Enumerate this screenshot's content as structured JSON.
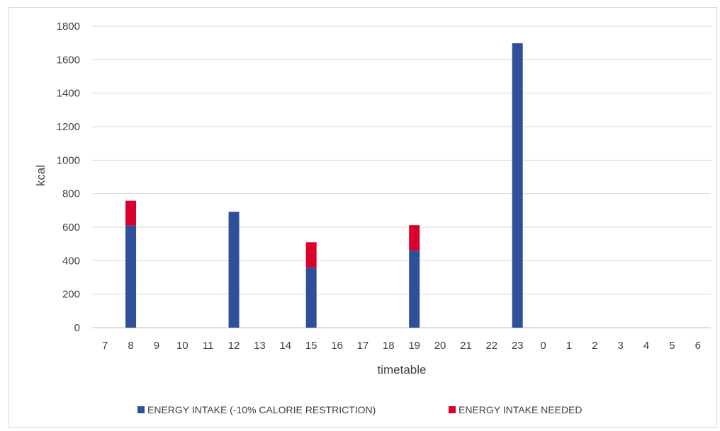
{
  "chart_data": {
    "type": "bar",
    "stacked": true,
    "categories": [
      "7",
      "8",
      "9",
      "10",
      "11",
      "12",
      "13",
      "14",
      "15",
      "16",
      "17",
      "18",
      "19",
      "20",
      "21",
      "22",
      "23",
      "0",
      "1",
      "2",
      "3",
      "4",
      "5",
      "6"
    ],
    "series": [
      {
        "name": "ENERGY INTAKE (-10% CALORIE RESTRICTION)",
        "color": "#2f4f9a",
        "values": [
          0,
          610,
          0,
          0,
          0,
          692,
          0,
          0,
          360,
          0,
          0,
          0,
          462,
          0,
          0,
          0,
          1698,
          0,
          0,
          0,
          0,
          0,
          0,
          0
        ]
      },
      {
        "name": "ENERGY INTAKE NEEDED",
        "color": "#d9002c",
        "values": [
          0,
          148,
          0,
          0,
          0,
          0,
          0,
          0,
          150,
          0,
          0,
          0,
          150,
          0,
          0,
          0,
          0,
          0,
          0,
          0,
          0,
          0,
          0,
          0
        ]
      }
    ],
    "xlabel": "timetable",
    "ylabel": "kcal",
    "ylim": [
      0,
      1800
    ],
    "yticks": [
      0,
      200,
      400,
      600,
      800,
      1000,
      1200,
      1400,
      1600,
      1800
    ],
    "grid": true,
    "legend_position": "bottom"
  }
}
